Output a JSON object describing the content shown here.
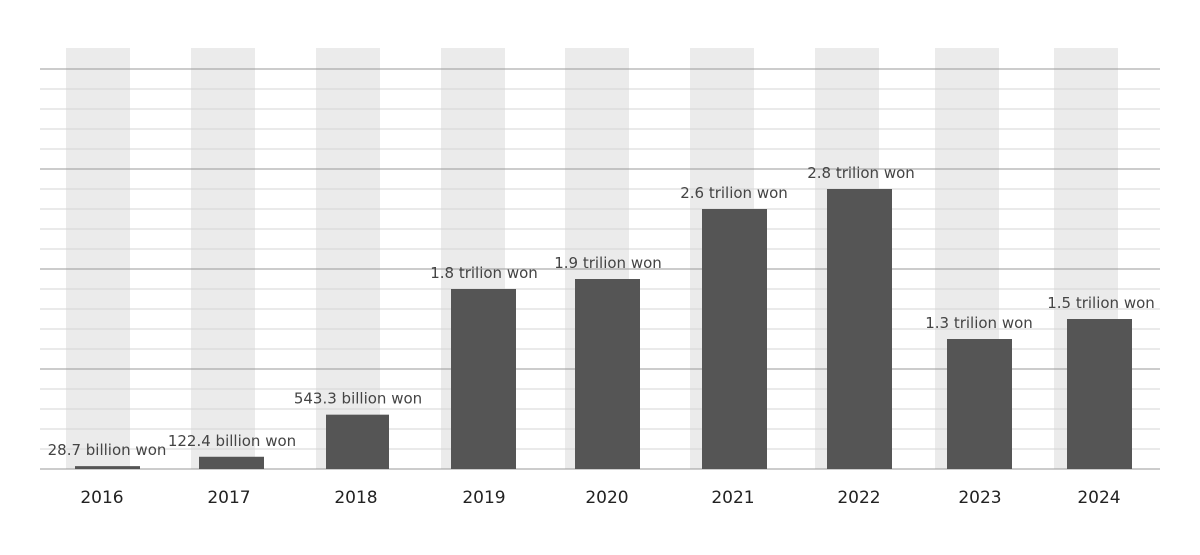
{
  "colors": {
    "bar": "#555555",
    "background_band": "#ebebeb",
    "major_grid": "#9a9a9a",
    "minor_grid": "#d4d4d4",
    "baseline": "#999999"
  },
  "chart_data": {
    "type": "bar",
    "title": "",
    "xlabel": "",
    "ylabel": "",
    "categories": [
      "2016",
      "2017",
      "2018",
      "2019",
      "2020",
      "2021",
      "2022",
      "2023",
      "2024"
    ],
    "values": [
      0.0287,
      0.1224,
      0.5433,
      1.8,
      1.9,
      2.6,
      2.8,
      1.3,
      1.5
    ],
    "value_labels": [
      "28.7 billion won",
      "122.4 billion won",
      "543.3 billion won",
      "1.8 trilion won",
      "1.9 trilion won",
      "2.6 trilion won",
      "2.8 trilion won",
      "1.3 trilion won",
      "1.5 trilion won"
    ],
    "ylim": [
      0,
      4.0
    ],
    "grid": true,
    "legend": "none"
  }
}
